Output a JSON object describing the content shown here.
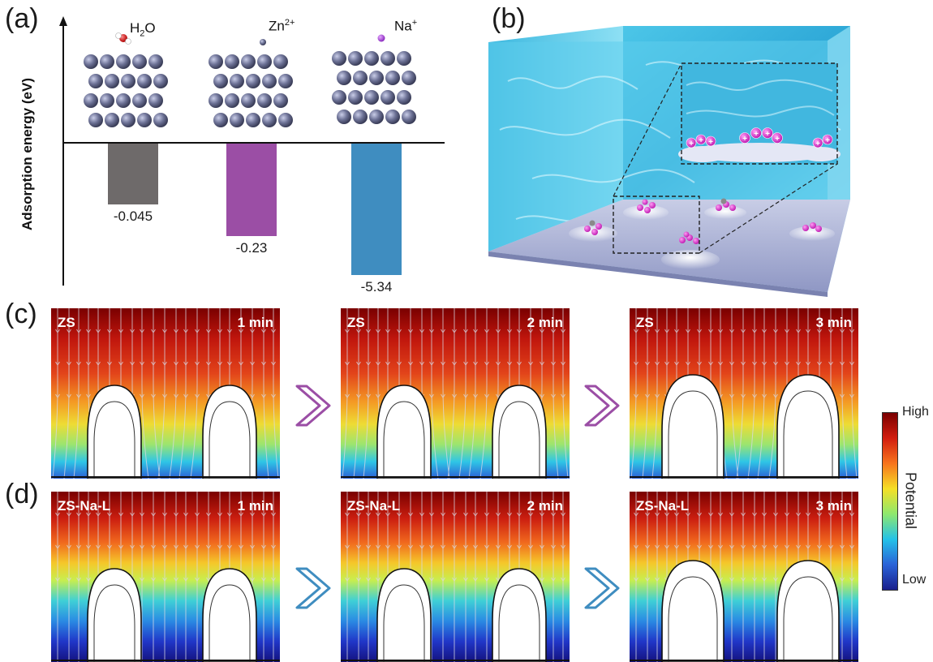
{
  "panel_labels": {
    "a": "(a)",
    "b": "(b)",
    "c": "(c)",
    "d": "(d)"
  },
  "panel_a": {
    "chart_data": {
      "type": "bar",
      "ylabel": "Adsorption energy (eV)",
      "categories": [
        "H2O",
        "Zn2+",
        "Na+"
      ],
      "values": [
        -0.045,
        -0.23,
        -5.34
      ],
      "value_labels": [
        "-0.045",
        "-0.23",
        "-5.34"
      ],
      "colors": [
        "#6e6a6a",
        "#9b4ea5",
        "#3f8dc0"
      ]
    },
    "species": {
      "h2o": {
        "main": "H",
        "sub": "2",
        "tail": "O"
      },
      "zn": {
        "main": "Zn",
        "sup": "2+"
      },
      "na": {
        "main": "Na",
        "sup": "+"
      }
    }
  },
  "panel_c": {
    "panels": [
      {
        "label": "ZS",
        "time": "1 min"
      },
      {
        "label": "ZS",
        "time": "2 min"
      },
      {
        "label": "ZS",
        "time": "3 min"
      }
    ],
    "arrow_color": "#9b4ea5"
  },
  "panel_d": {
    "panels": [
      {
        "label": "ZS-Na-L",
        "time": "1 min"
      },
      {
        "label": "ZS-Na-L",
        "time": "2 min"
      },
      {
        "label": "ZS-Na-L",
        "time": "3 min"
      }
    ],
    "arrow_color": "#3f8dc0"
  },
  "colorbar": {
    "high": "High",
    "title": "Potential",
    "low": "Low"
  }
}
